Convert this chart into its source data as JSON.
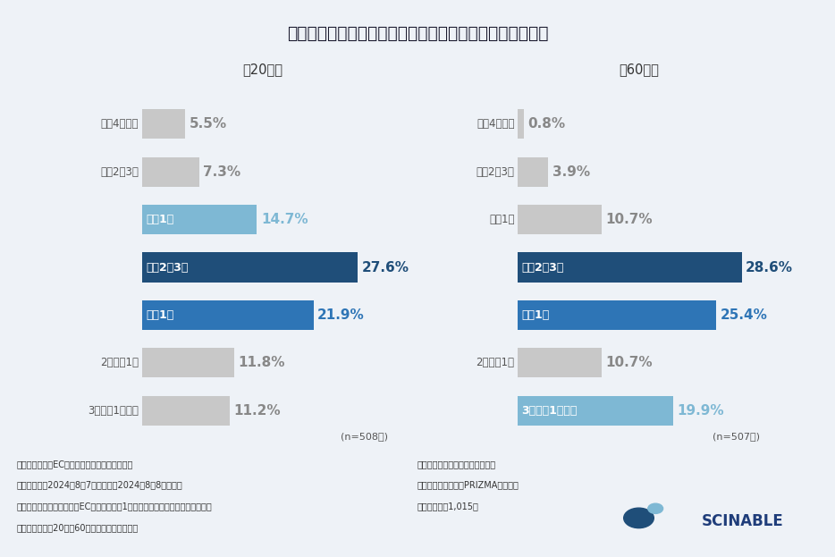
{
  "title": "どれくらいの頻度でネットショッピングをしていますか？",
  "subtitle_left": "ー20代ー",
  "subtitle_right": "ー60代ー",
  "categories": [
    "週に4回以上",
    "週に2～3回",
    "週に1回",
    "月に2～3回",
    "月に1回",
    "2か月に1回",
    "3か月に1回以下"
  ],
  "values_20s": [
    5.5,
    7.3,
    14.7,
    27.6,
    21.9,
    11.8,
    11.2
  ],
  "values_60s": [
    0.8,
    3.9,
    10.7,
    28.6,
    25.4,
    10.7,
    19.9
  ],
  "colors_20s": [
    "#c8c8c8",
    "#c8c8c8",
    "#7eb8d4",
    "#1f4e79",
    "#2e75b6",
    "#c8c8c8",
    "#c8c8c8"
  ],
  "colors_60s": [
    "#c8c8c8",
    "#c8c8c8",
    "#c8c8c8",
    "#1f4e79",
    "#2e75b6",
    "#c8c8c8",
    "#7eb8d4"
  ],
  "cat_label_inside_20s": [
    false,
    false,
    true,
    true,
    true,
    false,
    false
  ],
  "cat_label_inside_60s": [
    false,
    false,
    false,
    true,
    true,
    false,
    true
  ],
  "cat_label_color_inside": "#ffffff",
  "cat_label_color_outside": "#555555",
  "pct_colors_20s": [
    "#888888",
    "#888888",
    "#7eb8d4",
    "#1f4e79",
    "#2e75b6",
    "#888888",
    "#888888"
  ],
  "pct_colors_60s": [
    "#888888",
    "#888888",
    "#888888",
    "#1f4e79",
    "#2e75b6",
    "#888888",
    "#7eb8d4"
  ],
  "n_left": "(n=508人)",
  "n_right": "(n=507人)",
  "bg_color": "#eef2f7",
  "footnote_left1": "《調査概要：『ECサイト利用時』の意識調査》",
  "footnote_left2": "・調査期間：2024年8月7日（水）～2024年8月8日（木）",
  "footnote_left3": "・調査対象：調査回答時にECサイトで直近1年以内に商品を購入したことがある",
  "footnote_left4": "　　　　　　㈀20代と60代と回答したモニター",
  "footnote_right1": "・調査方法：インターネット調査",
  "footnote_right2": "・モニター提供元：PRIZMAリサーチ",
  "footnote_right3": "・調査人数：1,015人",
  "logo_text": "SCINABLE",
  "max_val": 32
}
